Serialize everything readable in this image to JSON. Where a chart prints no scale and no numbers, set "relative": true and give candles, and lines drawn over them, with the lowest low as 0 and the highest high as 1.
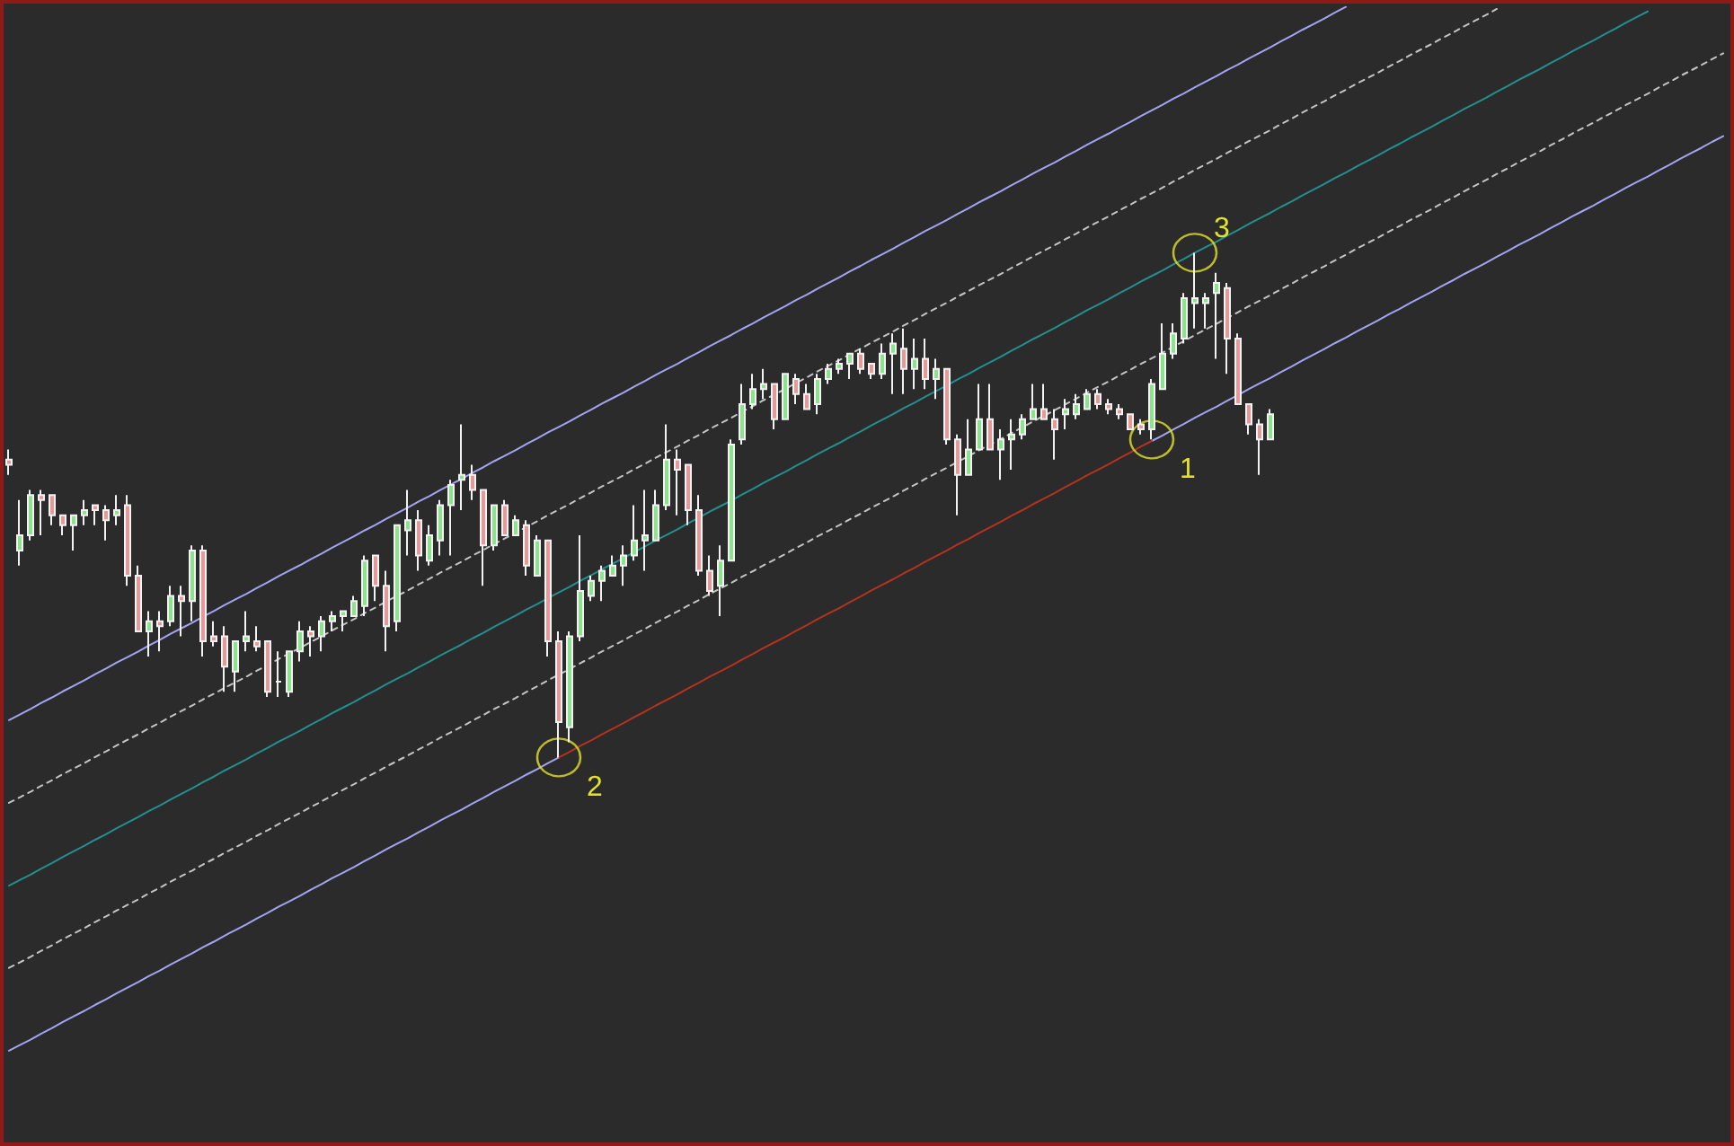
{
  "chart_data": {
    "type": "candlestick",
    "relative": true,
    "categories": [
      null,
      null,
      null,
      null,
      null,
      null,
      null,
      null,
      null,
      null,
      null,
      null,
      null,
      null,
      null,
      null,
      null,
      null,
      null,
      null,
      null,
      null,
      null,
      null,
      null,
      null,
      null,
      null,
      null,
      null,
      null,
      null,
      null,
      null,
      null,
      null,
      null,
      null,
      null,
      null,
      null,
      null,
      null,
      null,
      null,
      null,
      null,
      null,
      null,
      null,
      null,
      null,
      null,
      null,
      null,
      null,
      null,
      null,
      null,
      null,
      null,
      null,
      null,
      null,
      null,
      null,
      null,
      null,
      null,
      null,
      null,
      null,
      null,
      null,
      null,
      null,
      null,
      null,
      null,
      null,
      null,
      null,
      null,
      null,
      null,
      null,
      null,
      null,
      null,
      null,
      null,
      null,
      null,
      null,
      null,
      null,
      null,
      null,
      null,
      null,
      null,
      null,
      null,
      null,
      null,
      null,
      null,
      null,
      null,
      null,
      null,
      null,
      null,
      null,
      null,
      null,
      null,
      null,
      null,
      null,
      null,
      null,
      null,
      null,
      null,
      null,
      null,
      null,
      null,
      null,
      null,
      null,
      null,
      null,
      null,
      null,
      null,
      null,
      null,
      null,
      null,
      null,
      null,
      null,
      null,
      null,
      null,
      null,
      null,
      null,
      null,
      null,
      null,
      null,
      null,
      null,
      null,
      null,
      null,
      null
    ],
    "ohlc": [
      [
        0.59,
        0.61,
        0.56,
        0.58
      ],
      [
        0.41,
        0.51,
        0.38,
        0.44
      ],
      [
        0.44,
        0.53,
        0.43,
        0.52
      ],
      [
        0.52,
        0.53,
        0.44,
        0.51
      ],
      [
        0.52,
        0.52,
        0.46,
        0.48
      ],
      [
        0.48,
        0.48,
        0.44,
        0.46
      ],
      [
        0.46,
        0.48,
        0.41,
        0.48
      ],
      [
        0.48,
        0.51,
        0.46,
        0.49
      ],
      [
        0.5,
        0.5,
        0.46,
        0.49
      ],
      [
        0.49,
        0.5,
        0.43,
        0.47
      ],
      [
        0.48,
        0.52,
        0.46,
        0.49
      ],
      [
        0.5,
        0.52,
        0.34,
        0.36
      ],
      [
        0.36,
        0.38,
        0.25,
        0.25
      ],
      [
        0.25,
        0.29,
        0.2,
        0.27
      ],
      [
        0.27,
        0.29,
        0.21,
        0.26
      ],
      [
        0.27,
        0.34,
        0.26,
        0.32
      ],
      [
        0.32,
        0.34,
        0.24,
        0.31
      ],
      [
        0.31,
        0.42,
        0.27,
        0.41
      ],
      [
        0.41,
        0.42,
        0.2,
        0.23
      ],
      [
        0.24,
        0.27,
        0.22,
        0.23
      ],
      [
        0.24,
        0.26,
        0.13,
        0.18
      ],
      [
        0.17,
        0.23,
        0.13,
        0.23
      ],
      [
        0.23,
        0.29,
        0.21,
        0.24
      ],
      [
        0.23,
        0.26,
        0.21,
        0.22
      ],
      [
        0.23,
        0.23,
        0.12,
        0.13
      ],
      [
        0.15,
        0.21,
        0.12,
        0.15
      ],
      [
        0.13,
        0.21,
        0.12,
        0.21
      ],
      [
        0.21,
        0.27,
        0.19,
        0.25
      ],
      [
        0.25,
        0.26,
        0.2,
        0.24
      ],
      [
        0.24,
        0.28,
        0.21,
        0.27
      ],
      [
        0.27,
        0.29,
        0.25,
        0.28
      ],
      [
        0.28,
        0.29,
        0.25,
        0.29
      ],
      [
        0.28,
        0.32,
        0.28,
        0.31
      ],
      [
        0.3,
        0.4,
        0.28,
        0.39
      ],
      [
        0.4,
        0.4,
        0.31,
        0.34
      ],
      [
        0.34,
        0.37,
        0.21,
        0.26
      ],
      [
        0.27,
        0.46,
        0.25,
        0.46
      ],
      [
        0.45,
        0.53,
        0.4,
        0.47
      ],
      [
        0.47,
        0.49,
        0.37,
        0.4
      ],
      [
        0.39,
        0.46,
        0.38,
        0.44
      ],
      [
        0.43,
        0.51,
        0.4,
        0.5
      ],
      [
        0.5,
        0.55,
        0.4,
        0.54
      ],
      [
        0.55,
        0.66,
        0.49,
        0.56
      ],
      [
        0.56,
        0.58,
        0.51,
        0.53
      ],
      [
        0.53,
        0.53,
        0.34,
        0.42
      ],
      [
        0.42,
        0.5,
        0.41,
        0.5
      ],
      [
        0.5,
        0.51,
        0.44,
        0.44
      ],
      [
        0.44,
        0.48,
        0.44,
        0.47
      ],
      [
        0.46,
        0.47,
        0.36,
        0.38
      ],
      [
        0.36,
        0.44,
        0.36,
        0.43
      ],
      [
        0.43,
        0.43,
        0.2,
        0.23
      ],
      [
        0.23,
        0.25,
        0,
        0.07
      ],
      [
        0.06,
        0.25,
        0.03,
        0.24
      ],
      [
        0.24,
        0.44,
        0.23,
        0.33
      ],
      [
        0.32,
        0.36,
        0.31,
        0.35
      ],
      [
        0.35,
        0.38,
        0.31,
        0.37
      ],
      [
        0.36,
        0.4,
        0.36,
        0.38
      ],
      [
        0.38,
        0.42,
        0.34,
        0.4
      ],
      [
        0.4,
        0.5,
        0.39,
        0.43
      ],
      [
        0.43,
        0.53,
        0.37,
        0.44
      ],
      [
        0.43,
        0.53,
        0.43,
        0.5
      ],
      [
        0.5,
        0.66,
        0.49,
        0.59
      ],
      [
        0.59,
        0.61,
        0.48,
        0.57
      ],
      [
        0.58,
        0.58,
        0.46,
        0.49
      ],
      [
        0.49,
        0.52,
        0.36,
        0.37
      ],
      [
        0.37,
        0.4,
        0.32,
        0.33
      ],
      [
        0.34,
        0.42,
        0.28,
        0.39
      ],
      [
        0.39,
        0.63,
        0.39,
        0.62
      ],
      [
        0.63,
        0.74,
        0.62,
        0.7
      ],
      [
        0.7,
        0.76,
        0.69,
        0.73
      ],
      [
        0.73,
        0.77,
        0.71,
        0.74
      ],
      [
        0.74,
        0.74,
        0.65,
        0.67
      ],
      [
        0.67,
        0.76,
        0.67,
        0.76
      ],
      [
        0.75,
        0.76,
        0.7,
        0.72
      ],
      [
        0.72,
        0.74,
        0.69,
        0.69
      ],
      [
        0.7,
        0.76,
        0.68,
        0.75
      ],
      [
        0.75,
        0.78,
        0.74,
        0.77
      ],
      [
        0.77,
        0.79,
        0.76,
        0.78
      ],
      [
        0.78,
        0.8,
        0.75,
        0.8
      ],
      [
        0.8,
        0.81,
        0.76,
        0.77
      ],
      [
        0.78,
        0.78,
        0.75,
        0.76
      ],
      [
        0.76,
        0.82,
        0.75,
        0.8
      ],
      [
        0.8,
        0.84,
        0.72,
        0.82
      ],
      [
        0.81,
        0.85,
        0.72,
        0.77
      ],
      [
        0.77,
        0.83,
        0.73,
        0.79
      ],
      [
        0.79,
        0.83,
        0.73,
        0.75
      ],
      [
        0.75,
        0.79,
        0.71,
        0.77
      ],
      [
        0.77,
        0.77,
        0.62,
        0.63
      ],
      [
        0.63,
        0.64,
        0.48,
        0.56
      ],
      [
        0.56,
        0.67,
        0.56,
        0.61
      ],
      [
        0.61,
        0.74,
        0.61,
        0.67
      ],
      [
        0.67,
        0.74,
        0.61,
        0.61
      ],
      [
        0.61,
        0.65,
        0.55,
        0.63
      ],
      [
        0.63,
        0.67,
        0.57,
        0.64
      ],
      [
        0.64,
        0.68,
        0.63,
        0.67
      ],
      [
        0.67,
        0.74,
        0.67,
        0.69
      ],
      [
        0.69,
        0.74,
        0.67,
        0.67
      ],
      [
        0.67,
        0.69,
        0.59,
        0.65
      ],
      [
        0.68,
        0.71,
        0.65,
        0.69
      ],
      [
        0.68,
        0.72,
        0.67,
        0.7
      ],
      [
        0.69,
        0.73,
        0.69,
        0.72
      ],
      [
        0.72,
        0.73,
        0.69,
        0.7
      ],
      [
        0.7,
        0.71,
        0.68,
        0.69
      ],
      [
        0.69,
        0.7,
        0.67,
        0.68
      ],
      [
        0.68,
        0.68,
        0.65,
        0.65
      ],
      [
        0.66,
        0.67,
        0.64,
        0.65
      ],
      [
        0.65,
        0.75,
        0.63,
        0.74
      ],
      [
        0.73,
        0.86,
        0.73,
        0.8
      ],
      [
        0.8,
        0.86,
        0.79,
        0.84
      ],
      [
        0.83,
        0.92,
        0.82,
        0.91
      ],
      [
        0.9,
        1,
        0.85,
        0.91
      ],
      [
        0.9,
        0.92,
        0.85,
        0.91
      ],
      [
        0.92,
        0.96,
        0.79,
        0.94
      ],
      [
        0.93,
        0.94,
        0.76,
        0.83
      ],
      [
        0.83,
        0.84,
        0.7,
        0.7
      ],
      [
        0.7,
        0.7,
        0.64,
        0.66
      ],
      [
        0.66,
        0.67,
        0.56,
        0.63
      ],
      [
        0.63,
        0.69,
        0.63,
        0.68
      ],
      null,
      null,
      null,
      null,
      null,
      null,
      null,
      null,
      null,
      null,
      null,
      null,
      null,
      null,
      null,
      null,
      null,
      null,
      null,
      null,
      null,
      null,
      null,
      null,
      null,
      null,
      null,
      null,
      null,
      null,
      null,
      null,
      null,
      null,
      null,
      null,
      null,
      null,
      null,
      null,
      null,
      null
    ],
    "colors": [
      "#e39a9a",
      "#8ee28e",
      "#8ee28e",
      "#e39a9a",
      "#e39a9a",
      "#e39a9a",
      "#8ee28e",
      "#8ee28e",
      "#e39a9a",
      "#e39a9a",
      "#8ee28e",
      "#e39a9a",
      "#e39a9a",
      "#8ee28e",
      "#e39a9a",
      "#8ee28e",
      "#e39a9a",
      "#8ee28e",
      "#e39a9a",
      "#e39a9a",
      "#e39a9a",
      "#8ee28e",
      "#8ee28e",
      "#e39a9a",
      "#e39a9a",
      "#f2f2f2",
      "#8ee28e",
      "#8ee28e",
      "#e39a9a",
      "#8ee28e",
      "#8ee28e",
      "#8ee28e",
      "#8ee28e",
      "#8ee28e",
      "#e39a9a",
      "#e39a9a",
      "#8ee28e",
      "#8ee28e",
      "#e39a9a",
      "#8ee28e",
      "#8ee28e",
      "#8ee28e",
      "#8ee28e",
      "#e39a9a",
      "#e39a9a",
      "#8ee28e",
      "#e39a9a",
      "#8ee28e",
      "#e39a9a",
      "#8ee28e",
      "#e39a9a",
      "#e39a9a",
      "#8ee28e",
      "#8ee28e",
      "#8ee28e",
      "#8ee28e",
      "#8ee28e",
      "#8ee28e",
      "#8ee28e",
      "#8ee28e",
      "#8ee28e",
      "#8ee28e",
      "#e39a9a",
      "#e39a9a",
      "#e39a9a",
      "#e39a9a",
      "#8ee28e",
      "#8ee28e",
      "#8ee28e",
      "#8ee28e",
      "#8ee28e",
      "#e39a9a",
      "#8ee28e",
      "#e39a9a",
      "#e39a9a",
      "#8ee28e",
      "#8ee28e",
      "#8ee28e",
      "#8ee28e",
      "#e39a9a",
      "#e39a9a",
      "#8ee28e",
      "#8ee28e",
      "#e39a9a",
      "#8ee28e",
      "#e39a9a",
      "#8ee28e",
      "#e39a9a",
      "#e39a9a",
      "#8ee28e",
      "#8ee28e",
      "#e39a9a",
      "#8ee28e",
      "#8ee28e",
      "#8ee28e",
      "#8ee28e",
      "#e39a9a",
      "#e39a9a",
      "#8ee28e",
      "#8ee28e",
      "#8ee28e",
      "#e39a9a",
      "#e39a9a",
      "#e39a9a",
      "#e39a9a",
      "#e39a9a",
      "#8ee28e",
      "#8ee28e",
      "#8ee28e",
      "#8ee28e",
      "#8ee28e",
      "#8ee28e",
      "#8ee28e",
      "#e39a9a",
      "#e39a9a",
      "#e39a9a",
      "#e39a9a",
      "#8ee28e",
      null,
      null,
      null,
      null,
      null,
      null,
      null,
      null,
      null,
      null,
      null,
      null,
      null,
      null,
      null,
      null,
      null,
      null,
      null,
      null,
      null,
      null,
      null,
      null,
      null,
      null,
      null,
      null,
      null,
      null,
      null,
      null,
      null,
      null,
      null,
      null,
      null,
      null,
      null,
      null,
      null,
      null
    ],
    "series": [
      {
        "type": "line",
        "color": "#a4a4f2",
        "line_style": "solid",
        "values": [
          0.074,
          0.085,
          0.096,
          0.108,
          0.119,
          0.131,
          0.142,
          0.153,
          0.165,
          0.176,
          0.188,
          0.199,
          0.21,
          0.222,
          0.233,
          0.245,
          0.256,
          0.267,
          0.279,
          0.29,
          0.302,
          0.313,
          0.324,
          0.336,
          0.347,
          0.359,
          0.37,
          0.381,
          0.393,
          0.404,
          0.416,
          0.427,
          0.438,
          0.45,
          0.461,
          0.473,
          0.484,
          0.495,
          0.507,
          0.518,
          0.53,
          0.541,
          0.552,
          0.564,
          0.575,
          0.587,
          0.598,
          0.609,
          0.621,
          0.632,
          0.644,
          0.655,
          0.666,
          0.678,
          0.689,
          0.701,
          0.712,
          0.723,
          0.735,
          0.746,
          0.758,
          0.769,
          0.78,
          0.792,
          0.803,
          0.815,
          0.826,
          0.837,
          0.849,
          0.86,
          0.872,
          0.883,
          0.894,
          0.906,
          0.917,
          0.929,
          0.94,
          0.951,
          0.963,
          0.974,
          0.986,
          0.997,
          1.008,
          1.02,
          1.031,
          1.043,
          1.054,
          1.065,
          1.077,
          1.088,
          1.1,
          1.111,
          1.122,
          1.134,
          1.145,
          1.157,
          1.168,
          1.179,
          1.191,
          1.202,
          1.214,
          1.225,
          1.236,
          1.248,
          1.259,
          1.271,
          1.282,
          1.293,
          1.305,
          1.316,
          1.328,
          1.339,
          1.35,
          1.362,
          1.373,
          1.385,
          1.396,
          1.407,
          1.419,
          1.43,
          1.442,
          1.453,
          1.464,
          1.476,
          1.487,
          null,
          null,
          null,
          null,
          null,
          null,
          null,
          null,
          null,
          null,
          null,
          null,
          null,
          null,
          null,
          null,
          null,
          null,
          null,
          null,
          null,
          null,
          null,
          null,
          null,
          null,
          null,
          null,
          null,
          null,
          null,
          null,
          null,
          null,
          null
        ]
      },
      {
        "type": "line",
        "color": "#c4c4c4",
        "line_style": "dashed",
        "values": [
          -0.09,
          -0.079,
          -0.068,
          -0.056,
          -0.045,
          -0.033,
          -0.022,
          -0.011,
          0.001,
          0.012,
          0.024,
          0.035,
          0.046,
          0.058,
          0.069,
          0.081,
          0.092,
          0.103,
          0.115,
          0.126,
          0.138,
          0.149,
          0.16,
          0.172,
          0.183,
          0.195,
          0.206,
          0.217,
          0.229,
          0.24,
          0.252,
          0.263,
          0.274,
          0.286,
          0.297,
          0.309,
          0.32,
          0.331,
          0.343,
          0.354,
          0.366,
          0.377,
          0.388,
          0.4,
          0.411,
          0.423,
          0.434,
          0.445,
          0.457,
          0.468,
          0.48,
          0.491,
          0.502,
          0.514,
          0.525,
          0.537,
          0.548,
          0.559,
          0.571,
          0.582,
          0.594,
          0.605,
          0.616,
          0.628,
          0.639,
          0.651,
          0.662,
          0.673,
          0.685,
          0.696,
          0.708,
          0.719,
          0.73,
          0.742,
          0.753,
          0.765,
          0.776,
          0.787,
          0.799,
          0.81,
          0.822,
          0.833,
          0.844,
          0.856,
          0.867,
          0.879,
          0.89,
          0.901,
          0.913,
          0.924,
          0.936,
          0.947,
          0.958,
          0.97,
          0.981,
          0.993,
          1.004,
          1.015,
          1.027,
          1.038,
          1.05,
          1.061,
          1.072,
          1.084,
          1.095,
          1.107,
          1.118,
          1.129,
          1.141,
          1.152,
          1.164,
          1.175,
          1.186,
          1.198,
          1.209,
          1.221,
          1.232,
          1.243,
          1.255,
          1.266,
          1.278,
          1.289,
          1.3,
          1.312,
          1.323,
          1.335,
          1.346,
          1.357,
          1.369,
          1.38,
          1.392,
          1.403,
          1.414,
          1.426,
          1.437,
          1.449,
          1.46,
          1.471,
          1.483,
          null,
          null,
          null,
          null,
          null,
          null,
          null,
          null,
          null,
          null,
          null,
          null,
          null,
          null,
          null,
          null,
          null,
          null,
          null,
          null,
          null
        ]
      },
      {
        "type": "line",
        "color": "#23908e",
        "line_style": "solid",
        "values": [
          -0.254,
          -0.243,
          -0.232,
          -0.22,
          -0.209,
          -0.197,
          -0.186,
          -0.175,
          -0.163,
          -0.152,
          -0.14,
          -0.129,
          -0.118,
          -0.106,
          -0.095,
          -0.083,
          -0.072,
          -0.061,
          -0.049,
          -0.038,
          -0.026,
          -0.015,
          -0.004,
          0.008,
          0.019,
          0.031,
          0.042,
          0.053,
          0.065,
          0.076,
          0.088,
          0.099,
          0.11,
          0.122,
          0.133,
          0.145,
          0.156,
          0.167,
          0.179,
          0.19,
          0.202,
          0.213,
          0.224,
          0.236,
          0.247,
          0.259,
          0.27,
          0.281,
          0.293,
          0.304,
          0.316,
          0.327,
          0.338,
          0.35,
          0.361,
          0.373,
          0.384,
          0.395,
          0.407,
          0.418,
          0.43,
          0.441,
          0.452,
          0.464,
          0.475,
          0.487,
          0.498,
          0.509,
          0.521,
          0.532,
          0.544,
          0.555,
          0.566,
          0.578,
          0.589,
          0.601,
          0.612,
          0.623,
          0.635,
          0.646,
          0.658,
          0.669,
          0.68,
          0.692,
          0.703,
          0.715,
          0.726,
          0.737,
          0.749,
          0.76,
          0.772,
          0.783,
          0.794,
          0.806,
          0.817,
          0.829,
          0.84,
          0.851,
          0.863,
          0.874,
          0.886,
          0.897,
          0.908,
          0.92,
          0.931,
          0.943,
          0.954,
          0.965,
          0.977,
          0.988,
          1.0,
          1.011,
          1.022,
          1.034,
          1.045,
          1.057,
          1.068,
          1.079,
          1.091,
          1.102,
          1.114,
          1.125,
          1.136,
          1.148,
          1.159,
          1.171,
          1.182,
          1.193,
          1.205,
          1.216,
          1.228,
          1.239,
          1.25,
          1.262,
          1.273,
          1.285,
          1.296,
          1.307,
          1.319,
          1.33,
          1.342,
          1.353,
          1.364,
          1.376,
          1.387,
          1.399,
          1.41,
          1.421,
          1.433,
          1.444,
          1.456,
          1.467,
          1.478,
          null,
          null,
          null,
          null,
          null,
          null,
          null
        ]
      },
      {
        "type": "line",
        "color": "#c4c4c4",
        "line_style": "dashed",
        "values": [
          -0.417,
          -0.406,
          -0.395,
          -0.383,
          -0.372,
          -0.36,
          -0.349,
          -0.338,
          -0.326,
          -0.315,
          -0.303,
          -0.292,
          -0.281,
          -0.269,
          -0.258,
          -0.246,
          -0.235,
          -0.224,
          -0.212,
          -0.201,
          -0.189,
          -0.178,
          -0.167,
          -0.155,
          -0.144,
          -0.132,
          -0.121,
          -0.11,
          -0.098,
          -0.087,
          -0.075,
          -0.064,
          -0.053,
          -0.041,
          -0.03,
          -0.018,
          -0.007,
          0.004,
          0.016,
          0.027,
          0.039,
          0.05,
          0.061,
          0.073,
          0.084,
          0.096,
          0.107,
          0.118,
          0.13,
          0.141,
          0.153,
          0.164,
          0.175,
          0.187,
          0.198,
          0.21,
          0.221,
          0.232,
          0.244,
          0.255,
          0.267,
          0.278,
          0.289,
          0.301,
          0.312,
          0.324,
          0.335,
          0.346,
          0.358,
          0.369,
          0.381,
          0.392,
          0.403,
          0.415,
          0.426,
          0.438,
          0.449,
          0.46,
          0.472,
          0.483,
          0.495,
          0.506,
          0.517,
          0.529,
          0.54,
          0.552,
          0.563,
          0.574,
          0.586,
          0.597,
          0.609,
          0.62,
          0.631,
          0.643,
          0.654,
          0.666,
          0.677,
          0.688,
          0.7,
          0.711,
          0.723,
          0.734,
          0.745,
          0.757,
          0.768,
          0.78,
          0.791,
          0.802,
          0.814,
          0.825,
          0.837,
          0.848,
          0.859,
          0.871,
          0.882,
          0.894,
          0.905,
          0.916,
          0.928,
          0.939,
          0.951,
          0.962,
          0.973,
          0.985,
          0.996,
          1.008,
          1.019,
          1.03,
          1.042,
          1.053,
          1.065,
          1.076,
          1.087,
          1.099,
          1.11,
          1.122,
          1.133,
          1.144,
          1.156,
          1.167,
          1.179,
          1.19,
          1.201,
          1.213,
          1.224,
          1.236,
          1.247,
          1.258,
          1.27,
          1.281,
          1.293,
          1.304,
          1.315,
          1.327,
          1.338,
          1.35,
          1.361,
          1.372,
          1.384,
          1.395
        ]
      },
      {
        "type": "line",
        "color": "#a4a4f2",
        "line_style": "solid",
        "values": [
          -0.581,
          -0.57,
          -0.559,
          -0.547,
          -0.536,
          -0.524,
          -0.513,
          -0.502,
          -0.49,
          -0.479,
          -0.467,
          -0.456,
          -0.445,
          -0.433,
          -0.422,
          -0.41,
          -0.399,
          -0.388,
          -0.376,
          -0.365,
          -0.353,
          -0.342,
          -0.331,
          -0.319,
          -0.308,
          -0.296,
          -0.285,
          -0.274,
          -0.262,
          -0.251,
          -0.239,
          -0.228,
          -0.217,
          -0.205,
          -0.194,
          -0.182,
          -0.171,
          -0.16,
          -0.148,
          -0.137,
          -0.125,
          -0.114,
          -0.103,
          -0.091,
          -0.08,
          -0.068,
          -0.057,
          -0.046,
          -0.034,
          -0.023,
          -0.011,
          0,
          null,
          null,
          null,
          null,
          null,
          null,
          null,
          null,
          null,
          null,
          null,
          null,
          null,
          null,
          null,
          null,
          null,
          null,
          null,
          null,
          null,
          null,
          null,
          null,
          null,
          null,
          null,
          null,
          null,
          null,
          null,
          null,
          null,
          null,
          null,
          null,
          null,
          null,
          null,
          null,
          null,
          null,
          null,
          null,
          null,
          null,
          null,
          null,
          null,
          null,
          null,
          null,
          null,
          null,
          0.627,
          0.638,
          0.65,
          0.661,
          0.673,
          0.684,
          0.695,
          0.707,
          0.718,
          0.73,
          0.741,
          0.752,
          0.764,
          0.775,
          0.787,
          0.798,
          0.809,
          0.821,
          0.832,
          0.844,
          0.855,
          0.866,
          0.878,
          0.889,
          0.901,
          0.912,
          0.923,
          0.935,
          0.946,
          0.958,
          0.969,
          0.98,
          0.992,
          1.003,
          1.015,
          1.026,
          1.037,
          1.049,
          1.06,
          1.072,
          1.083,
          1.094,
          1.106,
          1.117,
          1.129,
          1.14,
          1.151,
          1.163,
          1.174,
          1.186,
          1.197,
          1.208,
          1.22,
          1.231
        ]
      },
      {
        "type": "line",
        "color": "#b4331f",
        "line_style": "solid",
        "values": [
          null,
          null,
          null,
          null,
          null,
          null,
          null,
          null,
          null,
          null,
          null,
          null,
          null,
          null,
          null,
          null,
          null,
          null,
          null,
          null,
          null,
          null,
          null,
          null,
          null,
          null,
          null,
          null,
          null,
          null,
          null,
          null,
          null,
          null,
          null,
          null,
          null,
          null,
          null,
          null,
          null,
          null,
          null,
          null,
          null,
          null,
          null,
          null,
          null,
          null,
          null,
          0,
          0.011,
          0.023,
          0.034,
          0.046,
          0.057,
          0.068,
          0.08,
          0.091,
          0.103,
          0.114,
          0.125,
          0.137,
          0.148,
          0.16,
          0.171,
          0.182,
          0.194,
          0.205,
          0.217,
          0.228,
          0.239,
          0.251,
          0.262,
          0.274,
          0.285,
          0.296,
          0.308,
          0.319,
          0.331,
          0.342,
          0.353,
          0.365,
          0.376,
          0.388,
          0.399,
          0.41,
          0.422,
          0.433,
          0.445,
          0.456,
          0.467,
          0.479,
          0.49,
          0.502,
          0.513,
          0.524,
          0.536,
          0.547,
          0.559,
          0.57,
          0.581,
          0.593,
          0.604,
          0.616,
          0.627,
          null,
          null,
          null,
          null,
          null,
          null,
          null,
          null,
          null,
          null,
          null,
          null,
          null,
          null,
          null,
          null,
          null,
          null,
          null,
          null,
          null,
          null,
          null,
          null,
          null,
          null,
          null,
          null,
          null,
          null,
          null,
          null,
          null,
          null,
          null,
          null,
          null,
          null,
          null,
          null,
          null,
          null,
          null,
          null,
          null,
          null,
          null,
          null,
          null,
          null,
          null,
          null,
          null
        ]
      },
      {
        "type": "scatter",
        "color": "#e2e12c",
        "marker": "circle",
        "values": [
          null,
          null,
          null,
          null,
          null,
          null,
          null,
          null,
          null,
          null,
          null,
          null,
          null,
          null,
          null,
          null,
          null,
          null,
          null,
          null,
          null,
          null,
          null,
          null,
          null,
          null,
          null,
          null,
          null,
          null,
          null,
          null,
          null,
          null,
          null,
          null,
          null,
          null,
          null,
          null,
          null,
          null,
          null,
          null,
          null,
          null,
          null,
          null,
          null,
          null,
          null,
          0,
          null,
          null,
          null,
          null,
          null,
          null,
          null,
          null,
          null,
          null,
          null,
          null,
          null,
          null,
          null,
          null,
          null,
          null,
          null,
          null,
          null,
          null,
          null,
          null,
          null,
          null,
          null,
          null,
          null,
          null,
          null,
          null,
          null,
          null,
          null,
          null,
          null,
          null,
          null,
          null,
          null,
          null,
          null,
          null,
          null,
          null,
          null,
          null,
          null,
          null,
          null,
          null,
          null,
          null,
          0.63,
          null,
          null,
          null,
          1,
          null,
          null,
          null,
          null,
          null,
          null,
          null,
          null,
          null,
          null,
          null,
          null,
          null,
          null,
          null,
          null,
          null,
          null,
          null,
          null,
          null,
          null,
          null,
          null,
          null,
          null,
          null,
          null,
          null,
          null,
          null,
          null,
          null,
          null,
          null,
          null,
          null,
          null,
          null,
          null,
          null,
          null,
          null,
          null,
          null,
          null,
          null,
          null,
          null
        ]
      }
    ],
    "annotations": [
      "2",
      "1",
      "3"
    ]
  }
}
